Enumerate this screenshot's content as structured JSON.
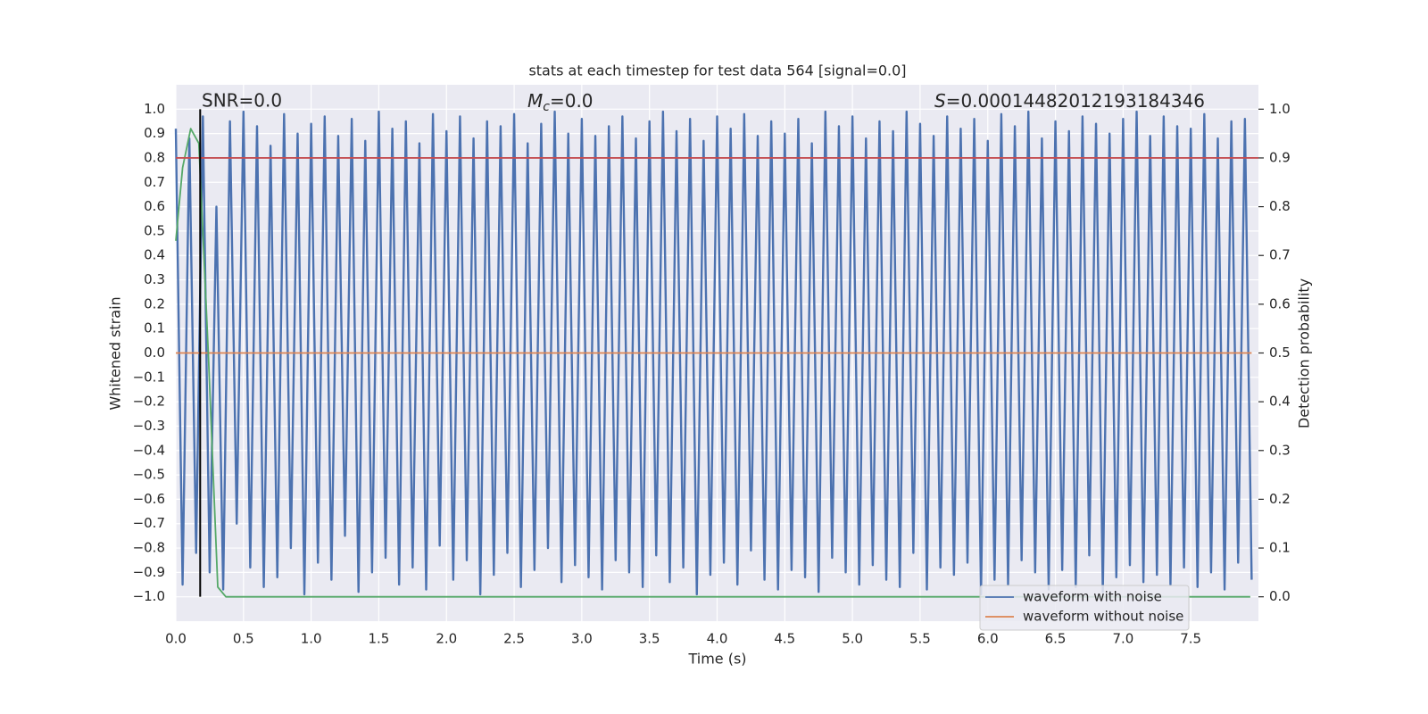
{
  "chart_data": {
    "type": "line",
    "title": "stats at each timestep for test data 564 [signal=0.0]",
    "xlabel": "Time (s)",
    "ylabel": "Whitened strain",
    "y2label": "Detection probability",
    "annotations": [
      {
        "text": "SNR=0.0"
      },
      {
        "symbol": "M",
        "subscript": "c",
        "text": "=0.0"
      },
      {
        "symbol": "S",
        "text": "=0.00014482012193184346"
      }
    ],
    "xlim": [
      0,
      8.0
    ],
    "ylim": [
      -1.1,
      1.1
    ],
    "y2lim": [
      -0.05,
      1.05
    ],
    "xticks": [
      {
        "value": 0,
        "label": "0.0"
      },
      {
        "value": 0.5,
        "label": "0.5"
      },
      {
        "value": 1,
        "label": "1.0"
      },
      {
        "value": 1.5,
        "label": "1.5"
      },
      {
        "value": 2,
        "label": "2.0"
      },
      {
        "value": 2.5,
        "label": "2.5"
      },
      {
        "value": 3,
        "label": "3.0"
      },
      {
        "value": 3.5,
        "label": "3.5"
      },
      {
        "value": 4,
        "label": "4.0"
      },
      {
        "value": 4.5,
        "label": "4.5"
      },
      {
        "value": 5,
        "label": "5.0"
      },
      {
        "value": 5.5,
        "label": "5.5"
      },
      {
        "value": 6,
        "label": "6.0"
      },
      {
        "value": 6.5,
        "label": "6.5"
      },
      {
        "value": 7,
        "label": "7.0"
      },
      {
        "value": 7.5,
        "label": "7.5"
      }
    ],
    "yticks": [
      {
        "value": -1,
        "label": "−1.0"
      },
      {
        "value": -0.9,
        "label": "−0.9"
      },
      {
        "value": -0.8,
        "label": "−0.8"
      },
      {
        "value": -0.7,
        "label": "−0.7"
      },
      {
        "value": -0.6,
        "label": "−0.6"
      },
      {
        "value": -0.5,
        "label": "−0.5"
      },
      {
        "value": -0.4,
        "label": "−0.4"
      },
      {
        "value": -0.3,
        "label": "−0.3"
      },
      {
        "value": -0.2,
        "label": "−0.2"
      },
      {
        "value": -0.1,
        "label": "−0.1"
      },
      {
        "value": 0,
        "label": "0.0"
      },
      {
        "value": 0.1,
        "label": "0.1"
      },
      {
        "value": 0.2,
        "label": "0.2"
      },
      {
        "value": 0.3,
        "label": "0.3"
      },
      {
        "value": 0.4,
        "label": "0.4"
      },
      {
        "value": 0.5,
        "label": "0.5"
      },
      {
        "value": 0.6,
        "label": "0.6"
      },
      {
        "value": 0.7,
        "label": "0.7"
      },
      {
        "value": 0.8,
        "label": "0.8"
      },
      {
        "value": 0.9,
        "label": "0.9"
      },
      {
        "value": 1,
        "label": "1.0"
      }
    ],
    "y2ticks": [
      {
        "value": 0,
        "label": "0.0"
      },
      {
        "value": 0.1,
        "label": "0.1"
      },
      {
        "value": 0.2,
        "label": "0.2"
      },
      {
        "value": 0.3,
        "label": "0.3"
      },
      {
        "value": 0.4,
        "label": "0.4"
      },
      {
        "value": 0.5,
        "label": "0.5"
      },
      {
        "value": 0.6,
        "label": "0.6"
      },
      {
        "value": 0.7,
        "label": "0.7"
      },
      {
        "value": 0.8,
        "label": "0.8"
      },
      {
        "value": 0.9,
        "label": "0.9"
      },
      {
        "value": 1,
        "label": "1.0"
      }
    ],
    "grid": true,
    "legend": "lower right",
    "series": [
      {
        "name": "waveform with noise",
        "color": "#4c72b0",
        "x": [
          0,
          0.05,
          0.1,
          0.15,
          0.2,
          0.25,
          0.3,
          0.35,
          0.4,
          0.45,
          0.5,
          0.55,
          0.6,
          0.65,
          0.7,
          0.75,
          0.8,
          0.85,
          0.9,
          0.95,
          1,
          1.05,
          1.1,
          1.15,
          1.2,
          1.25,
          1.3,
          1.35,
          1.4,
          1.45,
          1.5,
          1.55,
          1.6,
          1.65,
          1.7,
          1.75,
          1.8,
          1.85,
          1.9,
          1.95,
          2,
          2.05,
          2.1,
          2.15,
          2.2,
          2.25,
          2.3,
          2.35,
          2.4,
          2.45,
          2.5,
          2.55,
          2.6,
          2.65,
          2.7,
          2.75,
          2.8,
          2.85,
          2.9,
          2.95,
          3,
          3.05,
          3.1,
          3.15,
          3.2,
          3.25,
          3.3,
          3.35,
          3.4,
          3.45,
          3.5,
          3.55,
          3.6,
          3.65,
          3.7,
          3.75,
          3.8,
          3.85,
          3.9,
          3.95,
          4,
          4.05,
          4.1,
          4.15,
          4.2,
          4.25,
          4.3,
          4.35,
          4.4,
          4.45,
          4.5,
          4.55,
          4.6,
          4.65,
          4.7,
          4.75,
          4.8,
          4.85,
          4.9,
          4.95,
          5,
          5.05,
          5.1,
          5.15,
          5.2,
          5.25,
          5.3,
          5.35,
          5.4,
          5.45,
          5.5,
          5.55,
          5.6,
          5.65,
          5.7,
          5.75,
          5.8,
          5.85,
          5.9,
          5.95,
          6,
          6.05,
          6.1,
          6.15,
          6.2,
          6.25,
          6.3,
          6.35,
          6.4,
          6.45,
          6.5,
          6.55,
          6.6,
          6.65,
          6.7,
          6.75,
          6.8,
          6.85,
          6.9,
          6.95,
          7,
          7.05,
          7.1,
          7.15,
          7.2,
          7.25,
          7.3,
          7.35,
          7.4,
          7.45,
          7.5,
          7.55,
          7.6,
          7.65,
          7.7,
          7.75,
          7.8,
          7.85,
          7.9,
          7.95
        ],
        "values": [
          0.92,
          -0.95,
          0.88,
          -0.82,
          0.97,
          -0.9,
          0.6,
          -0.97,
          0.95,
          -0.7,
          0.99,
          -0.88,
          0.93,
          -0.96,
          0.85,
          -0.92,
          0.98,
          -0.8,
          0.9,
          -0.99,
          0.94,
          -0.86,
          0.97,
          -0.93,
          0.89,
          -0.75,
          0.96,
          -0.98,
          0.87,
          -0.9,
          0.99,
          -0.84,
          0.92,
          -0.95,
          0.95,
          -0.88,
          0.86,
          -0.97,
          0.98,
          -0.79,
          0.91,
          -0.93,
          0.97,
          -0.85,
          0.88,
          -0.99,
          0.95,
          -0.91,
          0.93,
          -0.82,
          0.98,
          -0.96,
          0.86,
          -0.89,
          0.94,
          -0.8,
          0.99,
          -0.94,
          0.9,
          -0.87,
          0.96,
          -0.92,
          0.89,
          -0.97,
          0.93,
          -0.85,
          0.97,
          -0.9,
          0.88,
          -0.96,
          0.95,
          -0.83,
          0.99,
          -0.94,
          0.91,
          -0.88,
          0.96,
          -0.99,
          0.87,
          -0.91,
          0.97,
          -0.86,
          0.92,
          -0.95,
          0.98,
          -0.81,
          0.89,
          -0.93,
          0.95,
          -0.97,
          0.9,
          -0.89,
          0.96,
          -0.92,
          0.86,
          -0.98,
          0.99,
          -0.84,
          0.93,
          -0.9,
          0.97,
          -0.95,
          0.88,
          -0.87,
          0.95,
          -0.93,
          0.91,
          -0.96,
          0.99,
          -0.82,
          0.94,
          -0.97,
          0.89,
          -0.88,
          0.97,
          -0.91,
          0.92,
          -0.86,
          0.96,
          -0.99,
          0.87,
          -0.93,
          0.98,
          -0.95,
          0.93,
          -0.85,
          0.99,
          -0.9,
          0.88,
          -0.97,
          0.95,
          -0.89,
          0.91,
          -0.96,
          0.97,
          -0.83,
          0.94,
          -0.98,
          0.9,
          -0.92,
          0.96,
          -0.87,
          0.99,
          -0.94,
          0.89,
          -0.91,
          0.97,
          -0.95,
          0.93,
          -0.88,
          0.92,
          -0.96,
          0.98,
          -0.9,
          0.88,
          -0.97,
          0.95,
          -0.86,
          0.96,
          -0.93
        ]
      },
      {
        "name": "waveform without noise",
        "color": "#dd8452",
        "x": [
          0,
          7.95
        ],
        "values": [
          0,
          0
        ]
      },
      {
        "color": "#55a868",
        "axis": "y2",
        "x": [
          0,
          0.05,
          0.11,
          0.17,
          0.24,
          0.31,
          0.37,
          7.94
        ],
        "values": [
          0.73,
          0.88,
          0.96,
          0.93,
          0.5,
          0.02,
          0,
          0
        ]
      }
    ],
    "hline": {
      "axis": "y2",
      "y": 0.9,
      "color": "#c44e52"
    },
    "vline": {
      "x": 0.18,
      "y": [
        -1,
        1
      ],
      "color": "#000000"
    }
  }
}
